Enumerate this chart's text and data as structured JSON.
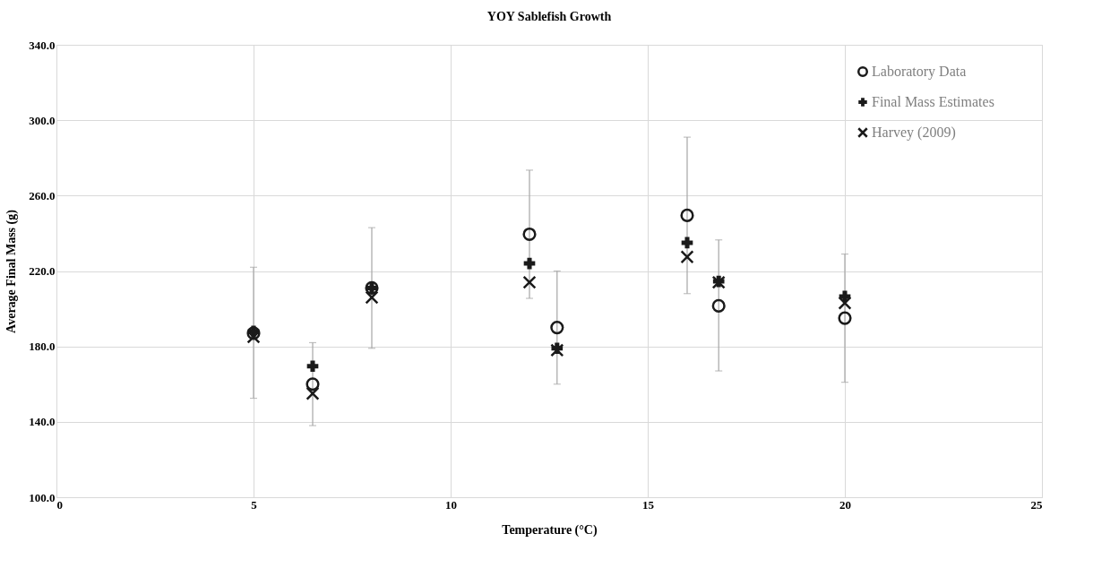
{
  "chart_data": {
    "type": "scatter",
    "title": "YOY Sablefish Growth",
    "xlabel": "Temperature (°C)",
    "ylabel": "Average Final Mass (g)",
    "xlim": [
      0,
      25
    ],
    "xticks": [
      0,
      5,
      10,
      15,
      20,
      25
    ],
    "ylim": [
      100,
      340
    ],
    "yticks": [
      {
        "value": 100,
        "label": "100.0"
      },
      {
        "value": 140,
        "label": "140.0"
      },
      {
        "value": 180,
        "label": "180.0"
      },
      {
        "value": 220,
        "label": "220.0"
      },
      {
        "value": 260,
        "label": "260.0"
      },
      {
        "value": 300,
        "label": "300.0"
      },
      {
        "value": 340,
        "label": "340.0"
      }
    ],
    "grid": true,
    "legend": "top right",
    "series": [
      {
        "name": "Laboratory Data",
        "color": "#1a1a1a",
        "marker": "circle",
        "x": [
          5,
          6.5,
          8,
          12,
          12.7,
          16,
          16.8,
          20
        ],
        "values": [
          187,
          160,
          211,
          239.5,
          190,
          249.5,
          201.5,
          195
        ],
        "errors": [
          [
            152.5,
            222
          ],
          [
            138,
            182
          ],
          [
            179,
            243
          ],
          [
            205.5,
            273.5
          ],
          [
            160,
            220
          ],
          [
            208,
            291
          ],
          [
            167,
            236.5
          ],
          [
            161,
            229
          ]
        ]
      },
      {
        "name": "Final Mass Estimates",
        "color": "#1a1a1a",
        "marker": "cross",
        "x": [
          5,
          6.5,
          8,
          12,
          12.7,
          16,
          16.8,
          20
        ],
        "values": [
          188,
          169.5,
          211,
          224,
          179,
          235,
          214.5,
          206.5
        ]
      },
      {
        "name": "Harvey (2009)",
        "color": "#1a1a1a",
        "marker": "x",
        "x": [
          5,
          6.5,
          8,
          12,
          12.7,
          16,
          16.8,
          20
        ],
        "values": [
          185,
          155,
          206,
          214,
          178,
          227.5,
          214,
          203
        ]
      }
    ]
  }
}
